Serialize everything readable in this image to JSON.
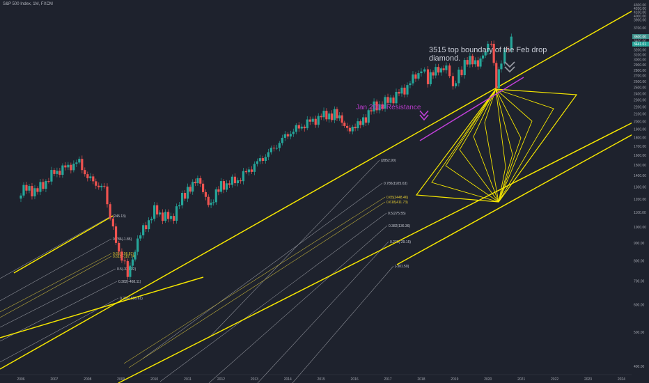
{
  "symbol": "S&P 500 Index, 1M, FXCM",
  "annotations": {
    "top_note": "3515 top boundary of the Feb drop diamond.",
    "resistance": "Jan 2018 Resistance"
  },
  "colors": {
    "background": "#1e222d",
    "up": "#26a69a",
    "down": "#ef5350",
    "channel": "#f5e600",
    "fib_line": "#8a8d95",
    "resistance": "#c040d8",
    "arrow_gray": "#9598a1"
  },
  "fib_left": [
    {
      "label": "(245.13)"
    },
    {
      "label": "0.786(-1.85)"
    },
    {
      "label": "0.65(-156.81)",
      "gold": true
    },
    {
      "label": "0.618(-187.74)",
      "gold": true
    },
    {
      "label": "0.5(-331.92)"
    },
    {
      "label": "0.382(-468.11)"
    },
    {
      "label": "0.236(-636.61)"
    }
  ],
  "fib_right": [
    {
      "label": "(2852.90)"
    },
    {
      "label": "0.786(1925.63)"
    },
    {
      "label": "0.65(2448.46)",
      "gold": true
    },
    {
      "label": "0.618(411.73)",
      "gold": true
    },
    {
      "label": "0.5(275.55)"
    },
    {
      "label": "0.382(136.36)"
    },
    {
      "label": "0.236(-29.15)"
    },
    {
      "label": "(-301.50)"
    }
  ],
  "chart_data": {
    "type": "candlestick",
    "title": "S&P 500 Index, 1M, FXCM",
    "timeframe": "1M",
    "y_scale": "log",
    "x_ticks": [
      "2006",
      "2007",
      "2008",
      "2009",
      "2010",
      "2011",
      "2012",
      "2013",
      "2014",
      "2015",
      "2016",
      "2017",
      "2018",
      "2019",
      "2020",
      "2021",
      "2022",
      "2023",
      "2024"
    ],
    "y_ticks": [
      "400.00",
      "500.00",
      "600.00",
      "700.00",
      "800.00",
      "900.00",
      "1000.00",
      "1100.00",
      "1200.00",
      "1300.00",
      "1400.00",
      "1500.00",
      "1600.00",
      "1700.00",
      "1800.00",
      "1900.00",
      "2000.00",
      "2100.00",
      "2200.00",
      "2300.00",
      "2400.00",
      "2500.00",
      "2600.00",
      "2700.00",
      "2800.00",
      "2900.00",
      "3000.00",
      "3100.00",
      "3200.00",
      "3300.00",
      "3400.00",
      "3500.00",
      "3700.00",
      "3900.00",
      "4000.00",
      "4100.00",
      "4200.00",
      "4300.00"
    ],
    "price_labels": [
      "3441.01",
      "3500.00"
    ],
    "close_series": [
      {
        "year": 2006.0,
        "close": 1280
      },
      {
        "year": 2006.5,
        "close": 1270
      },
      {
        "year": 2007.0,
        "close": 1430
      },
      {
        "year": 2007.75,
        "close": 1530
      },
      {
        "year": 2008.0,
        "close": 1380
      },
      {
        "year": 2008.5,
        "close": 1280
      },
      {
        "year": 2008.85,
        "close": 900
      },
      {
        "year": 2009.2,
        "close": 735
      },
      {
        "year": 2009.5,
        "close": 920
      },
      {
        "year": 2010.0,
        "close": 1110
      },
      {
        "year": 2010.5,
        "close": 1050
      },
      {
        "year": 2011.0,
        "close": 1290
      },
      {
        "year": 2011.3,
        "close": 1350
      },
      {
        "year": 2011.7,
        "close": 1150
      },
      {
        "year": 2012.0,
        "close": 1310
      },
      {
        "year": 2012.5,
        "close": 1360
      },
      {
        "year": 2013.0,
        "close": 1500
      },
      {
        "year": 2013.5,
        "close": 1650
      },
      {
        "year": 2014.0,
        "close": 1840
      },
      {
        "year": 2014.5,
        "close": 1960
      },
      {
        "year": 2015.0,
        "close": 2060
      },
      {
        "year": 2015.4,
        "close": 2110
      },
      {
        "year": 2015.7,
        "close": 1920
      },
      {
        "year": 2016.1,
        "close": 1930
      },
      {
        "year": 2016.5,
        "close": 2170
      },
      {
        "year": 2017.0,
        "close": 2280
      },
      {
        "year": 2017.5,
        "close": 2470
      },
      {
        "year": 2018.0,
        "close": 2820
      },
      {
        "year": 2018.2,
        "close": 2650
      },
      {
        "year": 2018.75,
        "close": 2910
      },
      {
        "year": 2018.95,
        "close": 2500
      },
      {
        "year": 2019.3,
        "close": 2940
      },
      {
        "year": 2019.7,
        "close": 2970
      },
      {
        "year": 2020.0,
        "close": 3230
      },
      {
        "year": 2020.1,
        "close": 3380
      },
      {
        "year": 2020.25,
        "close": 2580
      },
      {
        "year": 2020.4,
        "close": 3000
      },
      {
        "year": 2020.6,
        "close": 3270
      },
      {
        "year": 2020.7,
        "close": 3490
      }
    ]
  }
}
